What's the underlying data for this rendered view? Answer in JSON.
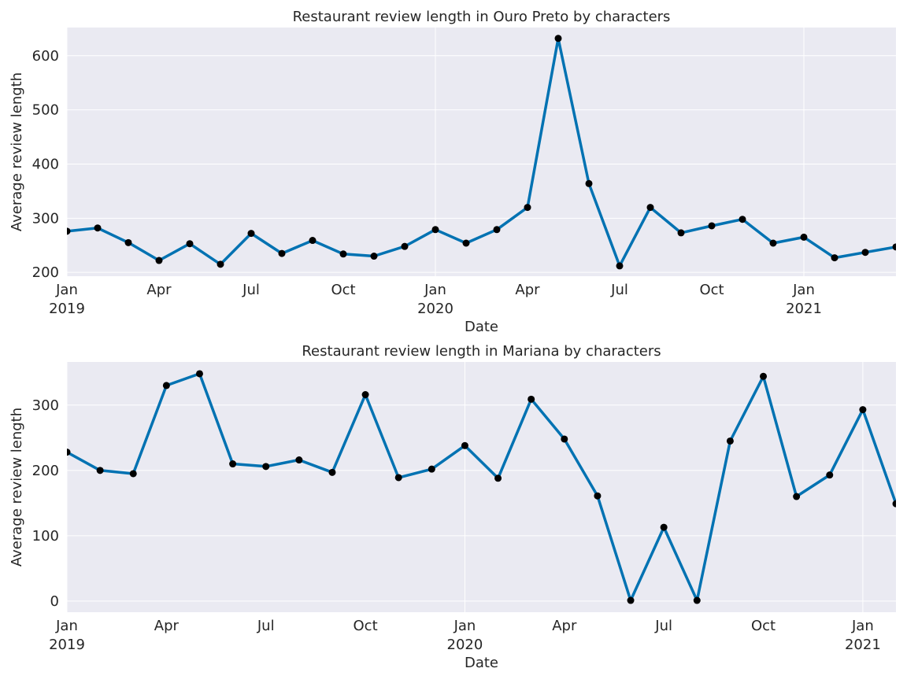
{
  "chart_data": [
    {
      "type": "line",
      "title": "Restaurant review length in Ouro Preto by characters",
      "xlabel": "Date",
      "ylabel": "Average review length",
      "ylim": [
        193,
        652
      ],
      "xlim": [
        "2019-01",
        "2021-04"
      ],
      "yticks": [
        200,
        300,
        400,
        500,
        600
      ],
      "xticks": [
        {
          "x": "2019-01",
          "label": "Jan",
          "year": "2019"
        },
        {
          "x": "2019-04",
          "label": "Apr",
          "year": ""
        },
        {
          "x": "2019-07",
          "label": "Jul",
          "year": ""
        },
        {
          "x": "2019-10",
          "label": "Oct",
          "year": ""
        },
        {
          "x": "2020-01",
          "label": "Jan",
          "year": "2020"
        },
        {
          "x": "2020-04",
          "label": "Apr",
          "year": ""
        },
        {
          "x": "2020-07",
          "label": "Jul",
          "year": ""
        },
        {
          "x": "2020-10",
          "label": "Oct",
          "year": ""
        },
        {
          "x": "2021-01",
          "label": "Jan",
          "year": "2021"
        }
      ],
      "grid": true,
      "color": "#0072b2",
      "marker_color": "#000000",
      "x": [
        "2019-01",
        "2019-02",
        "2019-03",
        "2019-04",
        "2019-05",
        "2019-06",
        "2019-07",
        "2019-08",
        "2019-09",
        "2019-10",
        "2019-11",
        "2019-12",
        "2020-01",
        "2020-02",
        "2020-03",
        "2020-04",
        "2020-05",
        "2020-06",
        "2020-07",
        "2020-08",
        "2020-09",
        "2020-10",
        "2020-11",
        "2020-12",
        "2021-01",
        "2021-02",
        "2021-03",
        "2021-04"
      ],
      "values": [
        276,
        282,
        255,
        222,
        253,
        215,
        272,
        235,
        259,
        234,
        230,
        248,
        279,
        254,
        279,
        320,
        632,
        364,
        212,
        320,
        273,
        286,
        298,
        254,
        265,
        227,
        237,
        247
      ]
    },
    {
      "type": "line",
      "title": "Restaurant review length in Mariana by characters",
      "xlabel": "Date",
      "ylabel": "Average review length",
      "ylim": [
        -17,
        366
      ],
      "xlim": [
        "2019-01",
        "2021-02"
      ],
      "yticks": [
        0,
        100,
        200,
        300
      ],
      "xticks": [
        {
          "x": "2019-01",
          "label": "Jan",
          "year": "2019"
        },
        {
          "x": "2019-04",
          "label": "Apr",
          "year": ""
        },
        {
          "x": "2019-07",
          "label": "Jul",
          "year": ""
        },
        {
          "x": "2019-10",
          "label": "Oct",
          "year": ""
        },
        {
          "x": "2020-01",
          "label": "Jan",
          "year": "2020"
        },
        {
          "x": "2020-04",
          "label": "Apr",
          "year": ""
        },
        {
          "x": "2020-07",
          "label": "Jul",
          "year": ""
        },
        {
          "x": "2020-10",
          "label": "Oct",
          "year": ""
        },
        {
          "x": "2021-01",
          "label": "Jan",
          "year": "2021"
        }
      ],
      "grid": true,
      "color": "#0072b2",
      "marker_color": "#000000",
      "x": [
        "2019-01",
        "2019-02",
        "2019-03",
        "2019-04",
        "2019-05",
        "2019-06",
        "2019-07",
        "2019-08",
        "2019-09",
        "2019-10",
        "2019-11",
        "2019-12",
        "2020-01",
        "2020-02",
        "2020-03",
        "2020-04",
        "2020-05",
        "2020-06",
        "2020-07",
        "2020-08",
        "2020-09",
        "2020-10",
        "2020-11",
        "2020-12",
        "2021-01",
        "2021-02"
      ],
      "values": [
        228,
        200,
        195,
        330,
        348,
        210,
        206,
        216,
        197,
        316,
        189,
        202,
        238,
        188,
        309,
        248,
        161,
        1,
        113,
        1,
        245,
        344,
        160,
        193,
        293,
        149
      ]
    }
  ]
}
